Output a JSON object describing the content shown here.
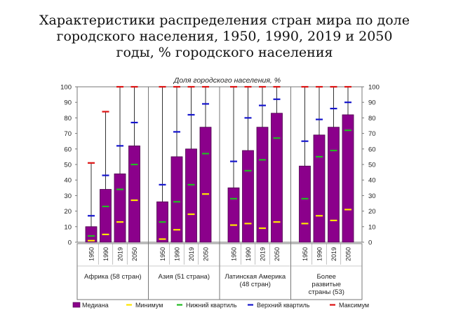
{
  "title_lines": [
    "Характеристики распределения стран мира по доле",
    "городского населения, 1950, 1990, 2019 и 2050",
    "годы, % городского населения"
  ],
  "chart_data": {
    "type": "bar",
    "title": "Доля городского населения, %",
    "ylim": [
      0,
      100
    ],
    "y_ticks": [
      0,
      10,
      20,
      30,
      40,
      50,
      60,
      70,
      80,
      90,
      100
    ],
    "grid": false,
    "legend_position": "bottom",
    "colors": {
      "median": "#8B008B",
      "median_edge": "#4B004B",
      "min": "#FFE600",
      "lower_quartile": "#22BB22",
      "upper_quartile": "#1515CC",
      "max": "#DD1111"
    },
    "groups": [
      {
        "label_lines": [
          "Африка  (58 стран)"
        ],
        "bars": [
          {
            "year": "1950",
            "median": 10,
            "min": 1,
            "lower_quartile": 4,
            "upper_quartile": 17,
            "max": 51
          },
          {
            "year": "1990",
            "median": 34,
            "min": 5,
            "lower_quartile": 23,
            "upper_quartile": 43,
            "max": 84
          },
          {
            "year": "2019",
            "median": 44,
            "min": 13,
            "lower_quartile": 34,
            "upper_quartile": 62,
            "max": 100
          },
          {
            "year": "2050",
            "median": 62,
            "min": 27,
            "lower_quartile": 50,
            "upper_quartile": 77,
            "max": 100
          }
        ]
      },
      {
        "label_lines": [
          "Азия (51 страна)"
        ],
        "bars": [
          {
            "year": "1950",
            "median": 26,
            "min": 2,
            "lower_quartile": 13,
            "upper_quartile": 37,
            "max": 100
          },
          {
            "year": "1990",
            "median": 55,
            "min": 8,
            "lower_quartile": 26,
            "upper_quartile": 71,
            "max": 100
          },
          {
            "year": "2019",
            "median": 60,
            "min": 18,
            "lower_quartile": 37,
            "upper_quartile": 82,
            "max": 100
          },
          {
            "year": "2050",
            "median": 74,
            "min": 31,
            "lower_quartile": 57,
            "upper_quartile": 89,
            "max": 100
          }
        ]
      },
      {
        "label_lines": [
          "Латинская Америка",
          "(48 стран)"
        ],
        "bars": [
          {
            "year": "1950",
            "median": 35,
            "min": 11,
            "lower_quartile": 28,
            "upper_quartile": 52,
            "max": 100
          },
          {
            "year": "1990",
            "median": 59,
            "min": 12,
            "lower_quartile": 46,
            "upper_quartile": 80,
            "max": 100
          },
          {
            "year": "2019",
            "median": 74,
            "min": 9,
            "lower_quartile": 53,
            "upper_quartile": 88,
            "max": 100
          },
          {
            "year": "2050",
            "median": 83,
            "min": 13,
            "lower_quartile": 67,
            "upper_quartile": 92,
            "max": 100
          }
        ]
      },
      {
        "label_lines": [
          "Более",
          "развитые",
          "страны (53)"
        ],
        "bars": [
          {
            "year": "1950",
            "median": 49,
            "min": 12,
            "lower_quartile": 28,
            "upper_quartile": 65,
            "max": 100
          },
          {
            "year": "1990",
            "median": 69,
            "min": 17,
            "lower_quartile": 55,
            "upper_quartile": 79,
            "max": 100
          },
          {
            "year": "2019",
            "median": 74,
            "min": 14,
            "lower_quartile": 59,
            "upper_quartile": 86,
            "max": 100
          },
          {
            "year": "2050",
            "median": 82,
            "min": 21,
            "lower_quartile": 72,
            "upper_quartile": 90,
            "max": 100
          }
        ]
      }
    ],
    "legend": [
      {
        "key": "median",
        "label": "Медиана"
      },
      {
        "key": "min",
        "label": "Минимум"
      },
      {
        "key": "lower_quartile",
        "label": "Нижний квартиль"
      },
      {
        "key": "upper_quartile",
        "label": "Верхний квартиль"
      },
      {
        "key": "max",
        "label": "Максимум"
      }
    ]
  }
}
